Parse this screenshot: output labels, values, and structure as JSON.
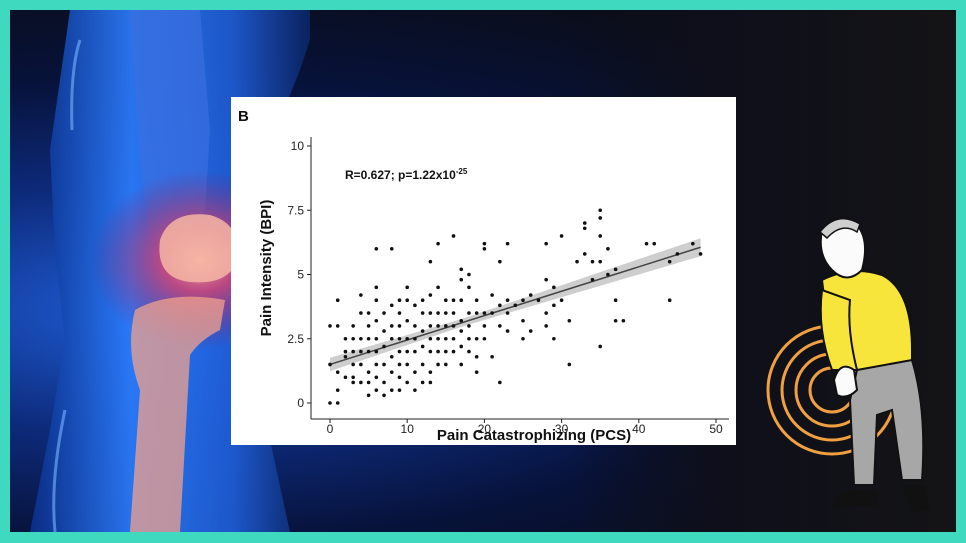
{
  "panel_letter": "B",
  "chart_data": {
    "type": "scatter",
    "title": "",
    "xlabel": "Pain Catastrophizing (PCS)",
    "ylabel": "Pain Intensity (BPI)",
    "xlim": [
      0,
      50
    ],
    "ylim": [
      0,
      10
    ],
    "x_ticks": [
      "0",
      "10",
      "20",
      "30",
      "40",
      "50"
    ],
    "y_ticks": [
      "0",
      "2.5",
      "5",
      "7.5",
      "10"
    ],
    "annotation": {
      "main": "R=0.627; p=1.22x10",
      "exponent": "-25"
    },
    "regression": {
      "intercept": 1.5,
      "slope": 0.095,
      "ci_halfwidth_end": 0.35,
      "ci_halfwidth_mid": 0.15
    },
    "grid": false,
    "legend": "none",
    "points": [
      [
        0,
        0
      ],
      [
        1,
        0
      ],
      [
        0,
        1.5
      ],
      [
        0,
        3
      ],
      [
        1,
        4
      ],
      [
        1,
        3
      ],
      [
        1,
        1.2
      ],
      [
        1,
        0.5
      ],
      [
        2,
        2
      ],
      [
        2,
        1
      ],
      [
        2,
        2.5
      ],
      [
        2,
        1.8
      ],
      [
        3,
        3
      ],
      [
        3,
        2
      ],
      [
        3,
        1
      ],
      [
        3,
        2.5
      ],
      [
        3,
        1.5
      ],
      [
        3,
        0.8
      ],
      [
        4,
        4.2
      ],
      [
        4,
        3.5
      ],
      [
        4,
        2.5
      ],
      [
        4,
        1.5
      ],
      [
        4,
        0.8
      ],
      [
        4,
        2
      ],
      [
        5,
        3.5
      ],
      [
        5,
        3
      ],
      [
        5,
        2.5
      ],
      [
        5,
        2
      ],
      [
        5,
        1.2
      ],
      [
        5,
        0.8
      ],
      [
        5,
        0.3
      ],
      [
        6,
        6
      ],
      [
        6,
        4.5
      ],
      [
        6,
        4
      ],
      [
        6,
        3.2
      ],
      [
        6,
        2.5
      ],
      [
        6,
        2
      ],
      [
        6,
        1.5
      ],
      [
        6,
        1
      ],
      [
        6,
        0.5
      ],
      [
        7,
        3.5
      ],
      [
        7,
        2.8
      ],
      [
        7,
        2.2
      ],
      [
        7,
        1.5
      ],
      [
        7,
        0.8
      ],
      [
        7,
        0.3
      ],
      [
        8,
        6
      ],
      [
        8,
        3.8
      ],
      [
        8,
        3
      ],
      [
        8,
        2.5
      ],
      [
        8,
        1.8
      ],
      [
        8,
        1.2
      ],
      [
        8,
        0.5
      ],
      [
        9,
        4
      ],
      [
        9,
        3.5
      ],
      [
        9,
        3
      ],
      [
        9,
        2.5
      ],
      [
        9,
        2
      ],
      [
        9,
        1.5
      ],
      [
        9,
        1
      ],
      [
        9,
        0.5
      ],
      [
        10,
        4.5
      ],
      [
        10,
        4
      ],
      [
        10,
        3.2
      ],
      [
        10,
        2.5
      ],
      [
        10,
        2
      ],
      [
        10,
        1.5
      ],
      [
        10,
        0.8
      ],
      [
        11,
        3.8
      ],
      [
        11,
        3
      ],
      [
        11,
        2.5
      ],
      [
        11,
        2
      ],
      [
        11,
        1.2
      ],
      [
        11,
        0.5
      ],
      [
        12,
        4
      ],
      [
        12,
        3.5
      ],
      [
        12,
        2.8
      ],
      [
        12,
        2.2
      ],
      [
        12,
        1.5
      ],
      [
        12,
        0.8
      ],
      [
        13,
        5.5
      ],
      [
        13,
        4.2
      ],
      [
        13,
        3.5
      ],
      [
        13,
        3
      ],
      [
        13,
        2.5
      ],
      [
        13,
        2
      ],
      [
        13,
        1.2
      ],
      [
        13,
        0.8
      ],
      [
        14,
        6.2
      ],
      [
        14,
        4.5
      ],
      [
        14,
        3.5
      ],
      [
        14,
        3
      ],
      [
        14,
        2.5
      ],
      [
        14,
        2
      ],
      [
        14,
        1.5
      ],
      [
        15,
        4
      ],
      [
        15,
        3.5
      ],
      [
        15,
        3
      ],
      [
        15,
        2.5
      ],
      [
        15,
        2
      ],
      [
        15,
        1.5
      ],
      [
        16,
        6.5
      ],
      [
        16,
        4
      ],
      [
        16,
        3.5
      ],
      [
        16,
        3
      ],
      [
        16,
        2.5
      ],
      [
        16,
        2
      ],
      [
        17,
        5.2
      ],
      [
        17,
        4.8
      ],
      [
        17,
        4
      ],
      [
        17,
        3.2
      ],
      [
        17,
        2.8
      ],
      [
        17,
        2.2
      ],
      [
        17,
        1.5
      ],
      [
        18,
        5
      ],
      [
        18,
        4.5
      ],
      [
        18,
        3.5
      ],
      [
        18,
        3
      ],
      [
        18,
        2.5
      ],
      [
        18,
        2
      ],
      [
        19,
        4
      ],
      [
        19,
        3.5
      ],
      [
        19,
        2.5
      ],
      [
        19,
        1.8
      ],
      [
        19,
        1.2
      ],
      [
        20,
        6.2
      ],
      [
        20,
        6
      ],
      [
        20,
        3.5
      ],
      [
        20,
        3
      ],
      [
        20,
        2.5
      ],
      [
        21,
        4.2
      ],
      [
        21,
        3.5
      ],
      [
        21,
        1.8
      ],
      [
        22,
        5.5
      ],
      [
        22,
        3.8
      ],
      [
        22,
        3
      ],
      [
        22,
        0.8
      ],
      [
        23,
        6.2
      ],
      [
        23,
        4
      ],
      [
        23,
        3.5
      ],
      [
        23,
        2.8
      ],
      [
        25,
        4
      ],
      [
        25,
        3.2
      ],
      [
        25,
        2.5
      ],
      [
        26,
        2.8
      ],
      [
        27,
        4
      ],
      [
        28,
        6.2
      ],
      [
        28,
        4.8
      ],
      [
        28,
        3.5
      ],
      [
        28,
        3
      ],
      [
        29,
        4.5
      ],
      [
        29,
        2.5
      ],
      [
        30,
        4
      ],
      [
        31,
        3.2
      ],
      [
        30,
        6.5
      ],
      [
        31,
        1.5
      ],
      [
        32,
        5.5
      ],
      [
        33,
        6.8
      ],
      [
        33,
        7
      ],
      [
        33,
        5.8
      ],
      [
        34,
        4.8
      ],
      [
        35,
        7.5
      ],
      [
        35,
        7.2
      ],
      [
        35,
        6.5
      ],
      [
        35,
        5.5
      ],
      [
        35,
        2.2
      ],
      [
        36,
        5
      ],
      [
        37,
        5.2
      ],
      [
        37,
        4
      ],
      [
        37,
        3.2
      ],
      [
        38,
        3.2
      ],
      [
        41,
        6.2
      ],
      [
        42,
        6.2
      ],
      [
        44,
        5.5
      ],
      [
        44,
        4
      ],
      [
        45,
        5.8
      ],
      [
        47,
        6.2
      ],
      [
        48,
        5.8
      ],
      [
        34,
        5.5
      ],
      [
        36,
        6
      ],
      [
        29,
        3.8
      ],
      [
        24,
        3.8
      ],
      [
        26,
        4.2
      ]
    ]
  }
}
